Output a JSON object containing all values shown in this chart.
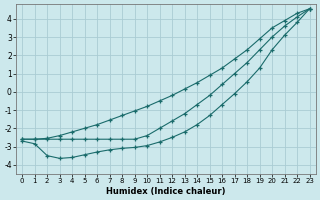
{
  "xlabel": "Humidex (Indice chaleur)",
  "background_color": "#cce8ec",
  "grid_color": "#aaccd4",
  "line_color": "#1a6b6b",
  "xlim": [
    -0.5,
    23.5
  ],
  "ylim": [
    -4.5,
    4.8
  ],
  "yticks": [
    -4,
    -3,
    -2,
    -1,
    0,
    1,
    2,
    3,
    4
  ],
  "xticks": [
    0,
    1,
    2,
    3,
    4,
    5,
    6,
    7,
    8,
    9,
    10,
    11,
    12,
    13,
    14,
    15,
    16,
    17,
    18,
    19,
    20,
    21,
    22,
    23
  ],
  "curve1_x": [
    0,
    1,
    2,
    3,
    4,
    5,
    6,
    7,
    8,
    9,
    10,
    11,
    12,
    13,
    14,
    15,
    16,
    17,
    18,
    19,
    20,
    21,
    22,
    23
  ],
  "curve1_y": [
    -2.6,
    -2.6,
    -2.55,
    -2.4,
    -2.2,
    -2.0,
    -1.8,
    -1.55,
    -1.3,
    -1.05,
    -0.8,
    -0.5,
    -0.2,
    0.15,
    0.5,
    0.9,
    1.3,
    1.8,
    2.3,
    2.9,
    3.5,
    3.9,
    4.3,
    4.55
  ],
  "curve2_x": [
    0,
    1,
    2,
    3,
    4,
    5,
    6,
    7,
    8,
    9,
    10,
    11,
    12,
    13,
    14,
    15,
    16,
    17,
    18,
    19,
    20,
    21,
    22,
    23
  ],
  "curve2_y": [
    -2.6,
    -2.6,
    -2.6,
    -2.6,
    -2.6,
    -2.6,
    -2.6,
    -2.6,
    -2.6,
    -2.6,
    -2.4,
    -2.0,
    -1.6,
    -1.2,
    -0.7,
    -0.2,
    0.4,
    1.0,
    1.6,
    2.3,
    3.0,
    3.6,
    4.1,
    4.55
  ],
  "curve3_x": [
    0,
    1,
    2,
    3,
    4,
    5,
    6,
    7,
    8,
    9,
    10,
    11,
    12,
    13,
    14,
    15,
    16,
    17,
    18,
    19,
    20,
    21,
    22,
    23
  ],
  "curve3_y": [
    -2.7,
    -2.85,
    -3.5,
    -3.65,
    -3.6,
    -3.45,
    -3.3,
    -3.18,
    -3.1,
    -3.05,
    -2.95,
    -2.75,
    -2.5,
    -2.2,
    -1.8,
    -1.3,
    -0.7,
    -0.1,
    0.55,
    1.3,
    2.3,
    3.1,
    3.8,
    4.55
  ]
}
